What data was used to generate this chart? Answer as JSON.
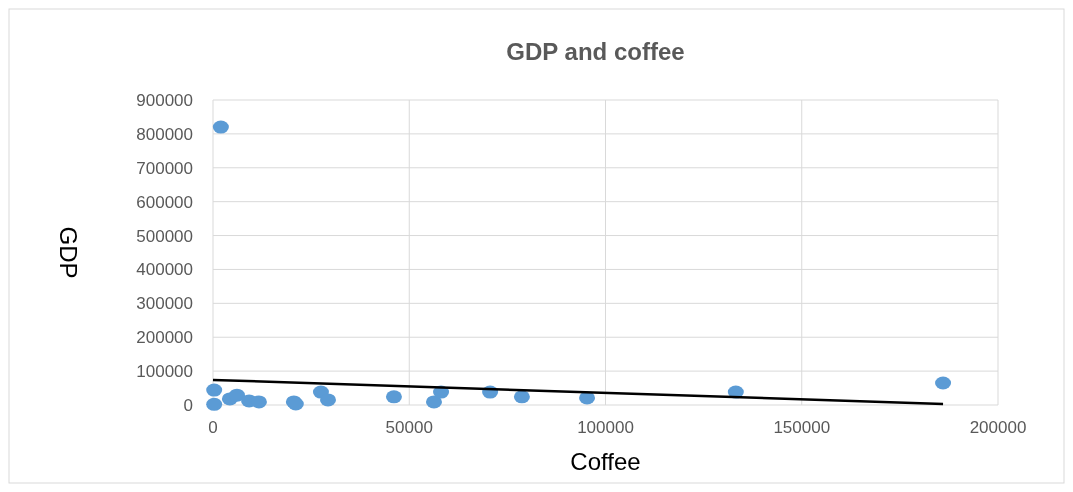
{
  "chart_data": {
    "type": "scatter",
    "title": "GDP and coffee",
    "xlabel": "Coffee",
    "ylabel": "GDP",
    "xlim": [
      0,
      200000
    ],
    "xticks": [
      0,
      50000,
      100000,
      150000,
      200000
    ],
    "ylim": [
      0,
      900000
    ],
    "yticks": [
      0,
      100000,
      200000,
      300000,
      400000,
      500000,
      600000,
      700000,
      800000,
      900000
    ],
    "grid": true,
    "series": [
      {
        "marker": "circle",
        "color": "#5b9bd5",
        "x": [
          2000,
          300,
          300,
          4300,
          6100,
          9200,
          11700,
          20600,
          21100,
          27500,
          29300,
          46100,
          56300,
          58100,
          70600,
          78700,
          95300,
          133200,
          186000
        ],
        "values": [
          820000,
          44000,
          2000,
          18000,
          29000,
          12000,
          9000,
          9000,
          3000,
          38000,
          15000,
          24000,
          9000,
          38000,
          38000,
          24000,
          21000,
          38000,
          65000
        ]
      },
      {
        "type": "line",
        "color": "#000000",
        "x": [
          0,
          186000
        ],
        "values": [
          74000,
          3000
        ],
        "line_style": "solid"
      }
    ]
  }
}
